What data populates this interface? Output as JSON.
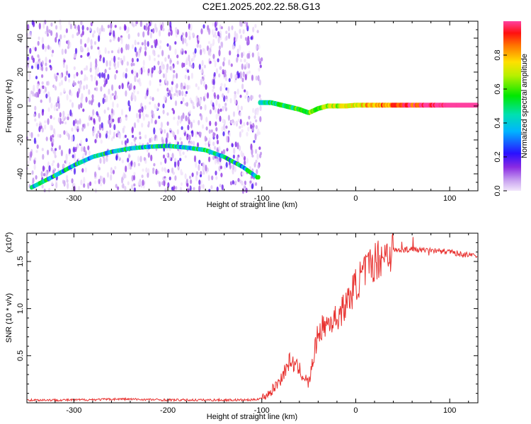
{
  "title": "C2E1.2025.202.22.58.G13",
  "chart_data": [
    {
      "type": "heatmap",
      "xlabel": "Height of straight line (km)",
      "ylabel": "Frequency (Hz)",
      "xlim": [
        -350,
        130
      ],
      "ylim": [
        -50,
        50
      ],
      "xticks": [
        "-300",
        "-200",
        "-100",
        "0",
        "100"
      ],
      "yticks": [
        "-40",
        "-20",
        "0",
        "20",
        "40"
      ],
      "colorbar": {
        "label": "Normalized spectral amplitude",
        "range": [
          0,
          1
        ],
        "ticks": [
          "0.0",
          "0.2",
          "0.4",
          "0.6",
          "0.8"
        ]
      },
      "signal_track": {
        "x": [
          -345,
          -320,
          -300,
          -280,
          -260,
          -240,
          -220,
          -200,
          -180,
          -160,
          -140,
          -120,
          -105,
          -100,
          -90,
          -75,
          -60,
          -50,
          -40,
          -30,
          -20,
          -10,
          0,
          30,
          60,
          100,
          130
        ],
        "y": [
          -48,
          -41,
          -35,
          -30,
          -27,
          -25,
          -24,
          -23.5,
          -24.5,
          -26,
          -30,
          -36,
          -42,
          2,
          2,
          0,
          -2,
          -4,
          -1.5,
          0,
          0,
          0,
          0.5,
          0.5,
          0.5,
          0.5,
          0.5
        ]
      },
      "grid": false
    },
    {
      "type": "line",
      "xlabel": "Height of straight line (km)",
      "ylabel": "SNR (10 * v/v)",
      "multiplier_label": "(x10",
      "multiplier_exp": "4",
      "xlim": [
        -350,
        130
      ],
      "ylim": [
        0,
        1.8
      ],
      "xticks": [
        "-300",
        "-200",
        "-100",
        "0",
        "100"
      ],
      "yticks": [
        "0.5",
        "1.0",
        "1.5"
      ],
      "series": [
        {
          "color": "#e8302e",
          "x": [
            -350,
            -300,
            -250,
            -200,
            -150,
            -110,
            -100,
            -90,
            -80,
            -70,
            -60,
            -50,
            -40,
            -30,
            -20,
            -10,
            0,
            10,
            20,
            30,
            40,
            60,
            80,
            100,
            130
          ],
          "values": [
            0.03,
            0.03,
            0.04,
            0.03,
            0.03,
            0.03,
            0.05,
            0.12,
            0.25,
            0.45,
            0.35,
            0.2,
            0.75,
            0.85,
            0.9,
            1.05,
            1.25,
            1.4,
            1.5,
            1.58,
            1.62,
            1.63,
            1.62,
            1.6,
            1.55
          ]
        }
      ],
      "grid": false
    }
  ]
}
